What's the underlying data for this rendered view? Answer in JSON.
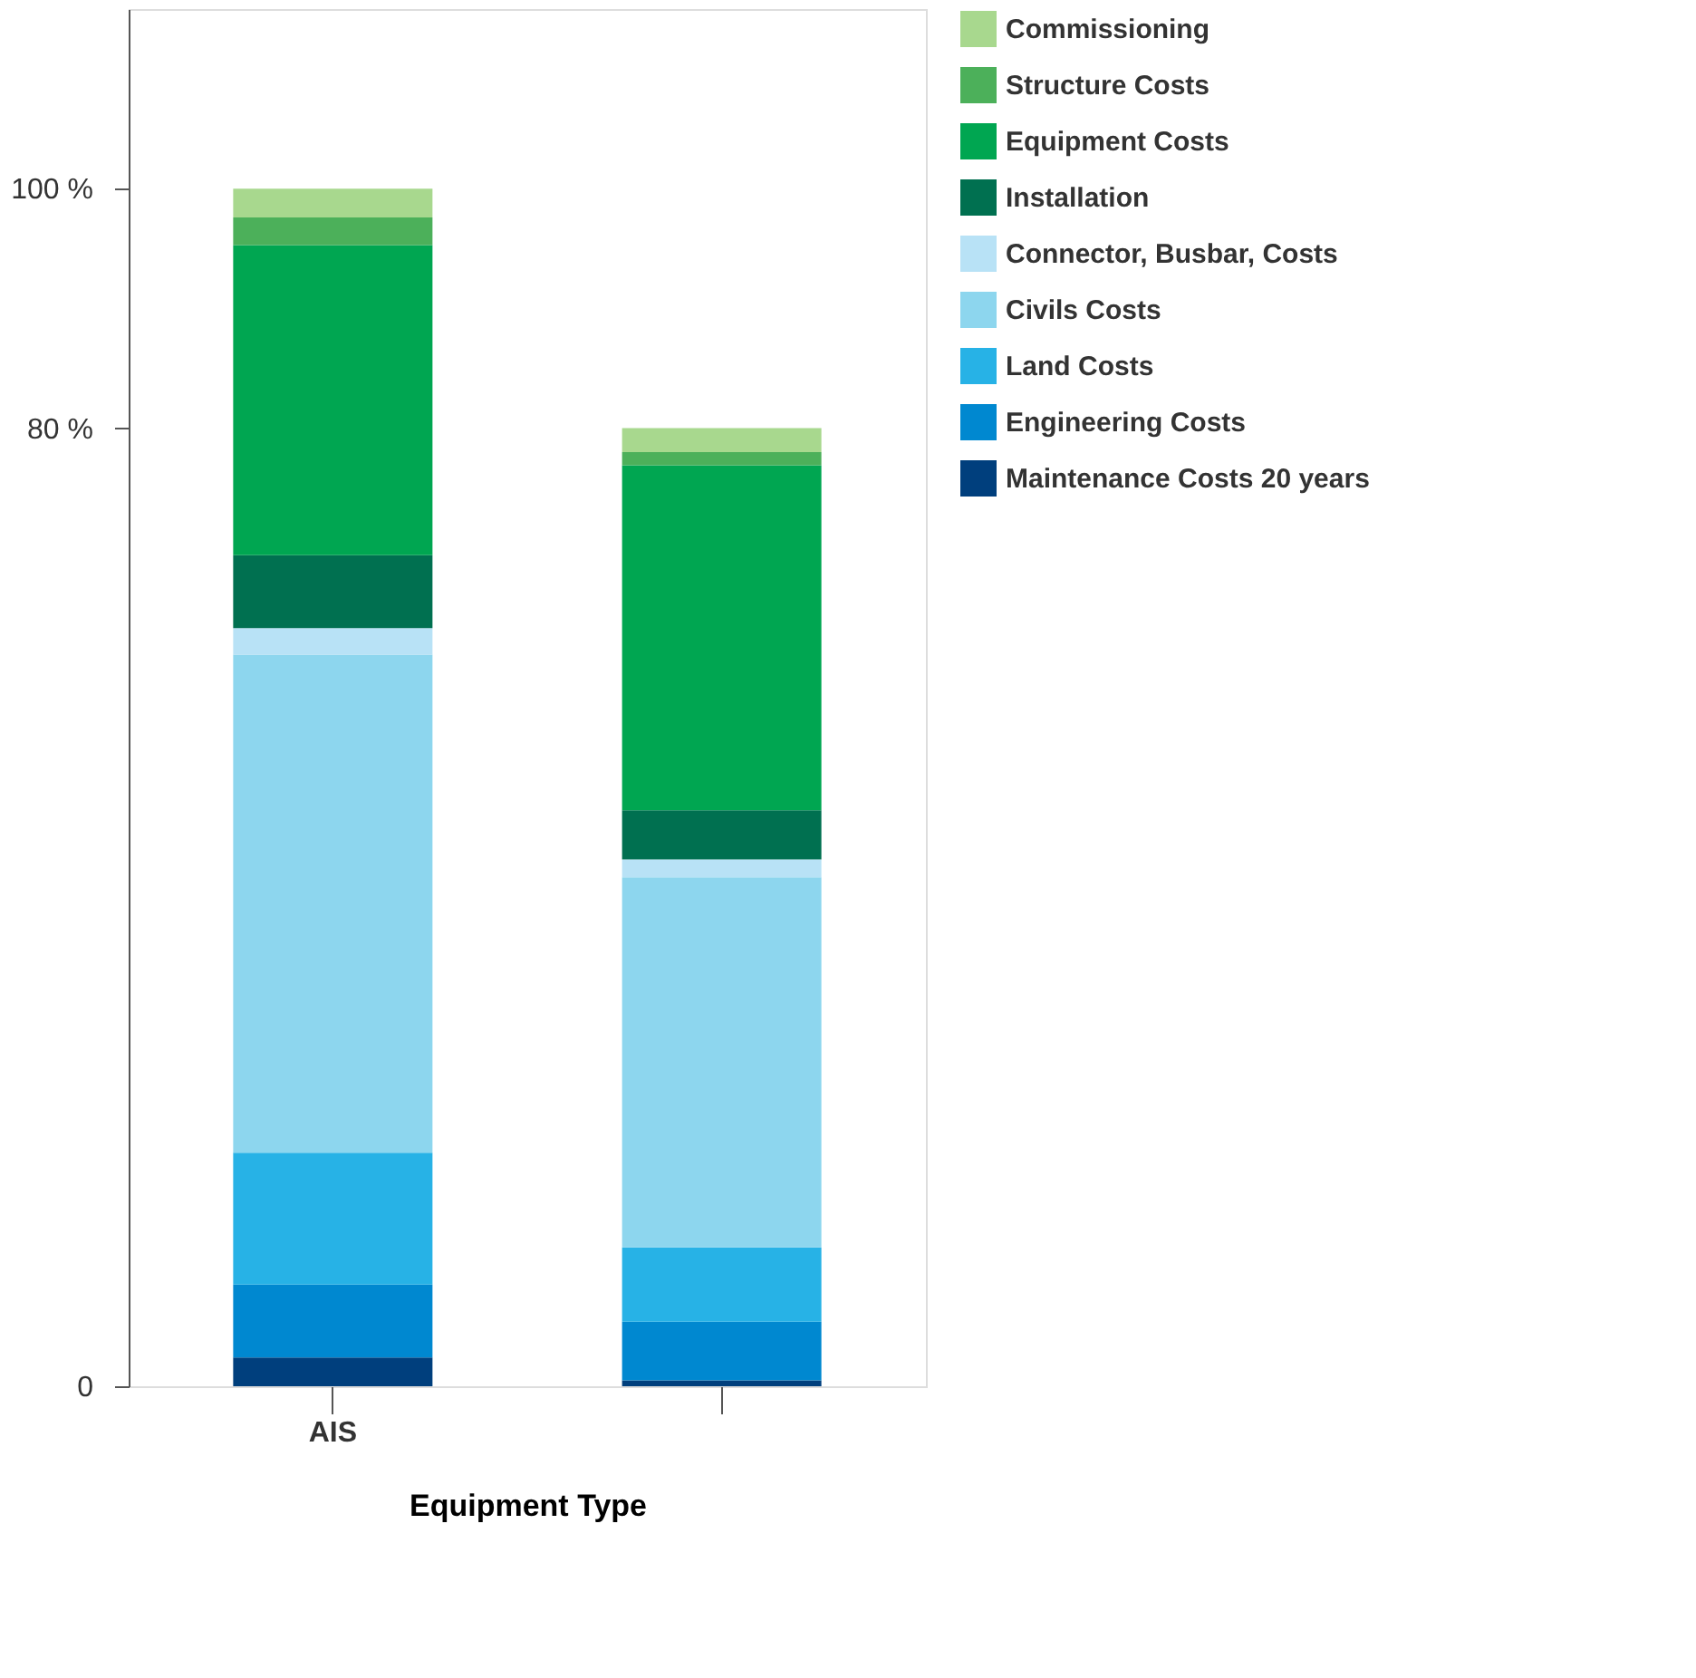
{
  "chart_data": {
    "type": "bar",
    "stacked": true,
    "xlabel": "Equipment Type",
    "categories": [
      "AIS",
      null
    ],
    "series": [
      {
        "name": "Maintenance Costs 20 years",
        "color": "#003f7d",
        "values": [
          2.4,
          0.5
        ]
      },
      {
        "name": "Engineering Costs",
        "color": "#0088d0",
        "values": [
          6.1,
          4.9
        ]
      },
      {
        "name": "Land Costs",
        "color": "#27b2e6",
        "values": [
          11.0,
          6.2
        ]
      },
      {
        "name": "Civils Costs",
        "color": "#8dd6ee",
        "values": [
          41.6,
          30.9
        ]
      },
      {
        "name": "Connector, Busbar, Costs",
        "color": "#b8e2f6",
        "values": [
          2.2,
          1.5
        ]
      },
      {
        "name": "Installation",
        "color": "#007050",
        "values": [
          6.1,
          4.1
        ]
      },
      {
        "name": "Equipment Costs",
        "color": "#00a651",
        "values": [
          25.9,
          28.8
        ]
      },
      {
        "name": "Structure Costs",
        "color": "#4cb05a",
        "values": [
          2.3,
          1.1
        ]
      },
      {
        "name": "Commissioning",
        "color": "#a8d88e",
        "values": [
          2.4,
          2.0
        ]
      }
    ],
    "ylim": [
      0,
      115
    ],
    "yticks": [
      0,
      {
        "value": 80,
        "label": "80 %"
      },
      {
        "value": 100,
        "label": "100 %"
      }
    ],
    "grid": false,
    "legend": "right"
  }
}
